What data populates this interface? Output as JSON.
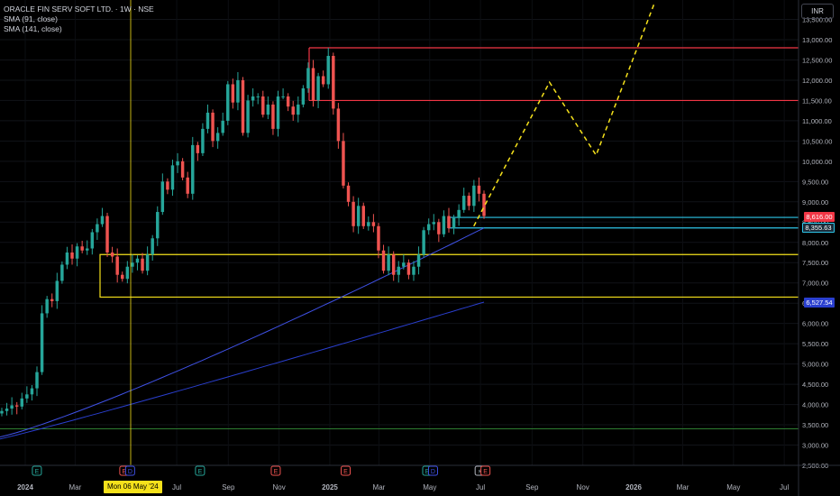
{
  "legend": {
    "title": "ORACLE FIN SERV SOFT LTD. · 1W · NSE",
    "sma1": "SMA (91, close)",
    "sma2": "SMA (141, close)"
  },
  "currency": "INR",
  "crosshair_date": "Mon 06 May '24",
  "price_labels": {
    "resistance_1": "8,616.00",
    "support_1": "8,355.63",
    "sma_value": "6,527.54"
  },
  "colors": {
    "up": "#26a69a",
    "down": "#ef5350",
    "sma_fast": "#3f51e6",
    "sma_slow": "#2a3fcf",
    "zone_box": "#f5e11b",
    "red_levels": "#f23645",
    "cyan_levels": "#2ec5e8",
    "green_level": "#2e7d32",
    "projection": "#f5e11b"
  },
  "chart_data": {
    "type": "candlestick",
    "y_axis_ticks": [
      "2,500.00",
      "3,000.00",
      "3,500.00",
      "4,000.00",
      "4,500.00",
      "5,000.00",
      "5,500.00",
      "6,000.00",
      "6,500.00",
      "7,000.00",
      "7,500.00",
      "8,000.00",
      "8,500.00",
      "9,000.00",
      "9,500.00",
      "10,000.00",
      "10,500.00",
      "11,000.00",
      "11,500.00",
      "12,000.00",
      "12,500.00",
      "13,000.00",
      "13,500.00"
    ],
    "ylim": [
      2300,
      13700
    ],
    "x_axis_ticks": [
      {
        "label": "2024",
        "date": "2024-01-01",
        "bold": true
      },
      {
        "label": "Mar",
        "date": "2024-03-01"
      },
      {
        "label": "Jul",
        "date": "2024-07-01"
      },
      {
        "label": "Sep",
        "date": "2024-09-01"
      },
      {
        "label": "Nov",
        "date": "2024-11-01"
      },
      {
        "label": "2025",
        "date": "2025-01-01",
        "bold": true
      },
      {
        "label": "Mar",
        "date": "2025-03-01"
      },
      {
        "label": "May",
        "date": "2025-05-01"
      },
      {
        "label": "Jul",
        "date": "2025-07-01"
      },
      {
        "label": "Sep",
        "date": "2025-09-01"
      },
      {
        "label": "Nov",
        "date": "2025-11-01"
      },
      {
        "label": "2026",
        "date": "2026-01-01",
        "bold": true
      },
      {
        "label": "Mar",
        "date": "2026-03-01"
      },
      {
        "label": "May",
        "date": "2026-05-01"
      },
      {
        "label": "Jul",
        "date": "2026-07-01"
      }
    ],
    "close_prices": [
      3840,
      3900,
      3980,
      3950,
      4150,
      4250,
      4400,
      4800,
      6250,
      6600,
      6550,
      7050,
      7450,
      7750,
      7600,
      7900,
      7800,
      7850,
      8250,
      8450,
      8650,
      7750,
      7650,
      7200,
      7100,
      7400,
      7500,
      7600,
      7300,
      7700,
      8100,
      8750,
      9500,
      9300,
      9900,
      10000,
      9600,
      9200,
      10400,
      10200,
      10800,
      11200,
      10500,
      10700,
      11000,
      11900,
      11450,
      12000,
      10700,
      11500,
      11600,
      11600,
      11150,
      11400,
      10800,
      11600,
      11600,
      11350,
      11150,
      11400,
      11800,
      12300,
      11500,
      12100,
      11900,
      12600,
      11300,
      10500,
      9400,
      9000,
      8400,
      8900,
      8400,
      8500,
      8400,
      7800,
      7300,
      7700,
      7200,
      7400,
      7500,
      7200,
      7400,
      7700,
      8300,
      8450,
      8500,
      8200,
      8650,
      8350,
      8600,
      8800,
      9150,
      8900,
      9400,
      9200,
      8650
    ],
    "levels": {
      "red_top": 12800,
      "red_mid": 11500,
      "cyan_top": 8616,
      "cyan_bottom": 8355.63,
      "yellow_top": 7700,
      "yellow_bottom": 6650,
      "green": 3400
    },
    "projection_points": [
      [
        8400,
        "2025-06-23"
      ],
      [
        11950,
        "2025-09-22"
      ],
      [
        10150,
        "2025-11-17"
      ],
      [
        13900,
        "2026-01-26"
      ]
    ],
    "sma_fast": {
      "name": "SMA (91, close)",
      "start": 3200,
      "end": 8355.63
    },
    "sma_slow": {
      "name": "SMA (141, close)",
      "start": 3150,
      "end": 6527.54
    },
    "event_markers": [
      {
        "label": "E",
        "date": "2024-01-15",
        "color": "#26a69a"
      },
      {
        "label": "E",
        "date": "2024-04-29",
        "color": "#ef5350"
      },
      {
        "label": "D",
        "date": "2024-05-06",
        "color": "#3f51e6"
      },
      {
        "label": "E",
        "date": "2024-07-29",
        "color": "#26a69a"
      },
      {
        "label": "E",
        "date": "2024-10-28",
        "color": "#ef5350"
      },
      {
        "label": "E",
        "date": "2025-01-20",
        "color": "#ef5350"
      },
      {
        "label": "E",
        "date": "2025-04-28",
        "color": "#26a69a"
      },
      {
        "label": "D",
        "date": "2025-05-05",
        "color": "#3f51e6"
      },
      {
        "label": "⚡",
        "date": "2025-06-30",
        "color": "#b2b5be"
      },
      {
        "label": "E",
        "date": "2025-07-07",
        "color": "#ef5350"
      }
    ]
  }
}
